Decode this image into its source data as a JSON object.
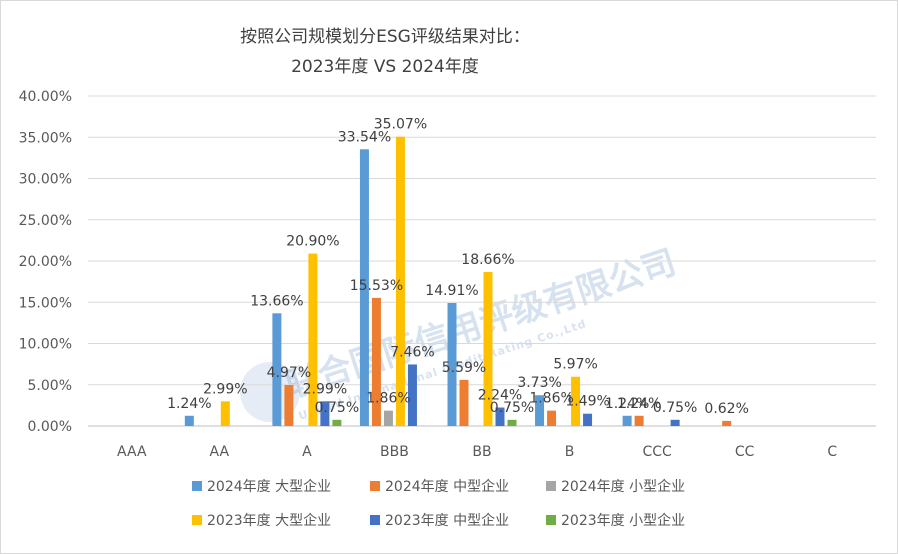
{
  "chart_data": {
    "type": "bar",
    "title_line1": "按照公司规模划分ESG评级结果对比：",
    "title_line2": "2023年度 VS 2024年度",
    "categories": [
      "AAA",
      "AA",
      "A",
      "BBB",
      "BB",
      "B",
      "CCC",
      "CC",
      "C"
    ],
    "ylim": [
      0,
      40
    ],
    "yticks": [
      "0.00%",
      "5.00%",
      "10.00%",
      "15.00%",
      "20.00%",
      "25.00%",
      "30.00%",
      "35.00%",
      "40.00%"
    ],
    "ytick_values": [
      0,
      5,
      10,
      15,
      20,
      25,
      30,
      35,
      40
    ],
    "grid": true,
    "legend_position": "bottom",
    "series": [
      {
        "name": "2024年度 大型企业",
        "color": "#5b9bd5",
        "values": [
          0,
          1.24,
          13.66,
          33.54,
          14.91,
          3.73,
          1.24,
          0,
          0
        ],
        "labels": [
          "",
          "1.24%",
          "13.66%",
          "33.54%",
          "14.91%",
          "3.73%",
          "1.24%",
          "",
          ""
        ]
      },
      {
        "name": "2024年度 中型企业",
        "color": "#ed7d31",
        "values": [
          0,
          0,
          4.97,
          15.53,
          5.59,
          1.86,
          1.24,
          0.62,
          0
        ],
        "labels": [
          "",
          "",
          "4.97%",
          "15.53%",
          "5.59%",
          "1.86%",
          "1.24%",
          "0.62%",
          ""
        ]
      },
      {
        "name": "2024年度 小型企业",
        "color": "#a5a5a5",
        "values": [
          0,
          0,
          0,
          1.86,
          0,
          0,
          0,
          0,
          0
        ],
        "labels": [
          "",
          "",
          "",
          "1.86%",
          "",
          "",
          "",
          "",
          ""
        ]
      },
      {
        "name": "2023年度 大型企业",
        "color": "#ffc000",
        "values": [
          0,
          2.99,
          20.9,
          35.07,
          18.66,
          5.97,
          0,
          0,
          0
        ],
        "labels": [
          "",
          "2.99%",
          "20.90%",
          "35.07%",
          "18.66%",
          "5.97%",
          "",
          "",
          ""
        ]
      },
      {
        "name": "2023年度 中型企业",
        "color": "#4472c4",
        "values": [
          0,
          0,
          2.99,
          7.46,
          2.24,
          1.49,
          0.75,
          0,
          0
        ],
        "labels": [
          "",
          "",
          "2.99%",
          "7.46%",
          "2.24%",
          "1.49%",
          "0.75%",
          "",
          ""
        ]
      },
      {
        "name": "2023年度 小型企业",
        "color": "#70ad47",
        "values": [
          0,
          0,
          0.75,
          0,
          0.75,
          0,
          0,
          0,
          0
        ],
        "labels": [
          "",
          "",
          "0.75%",
          "",
          "0.75%",
          "",
          "",
          "",
          ""
        ]
      }
    ],
    "watermark": {
      "main": "联合国际信用评级有限公司",
      "sub": "United International Credit Rating Co.,Ltd"
    }
  }
}
